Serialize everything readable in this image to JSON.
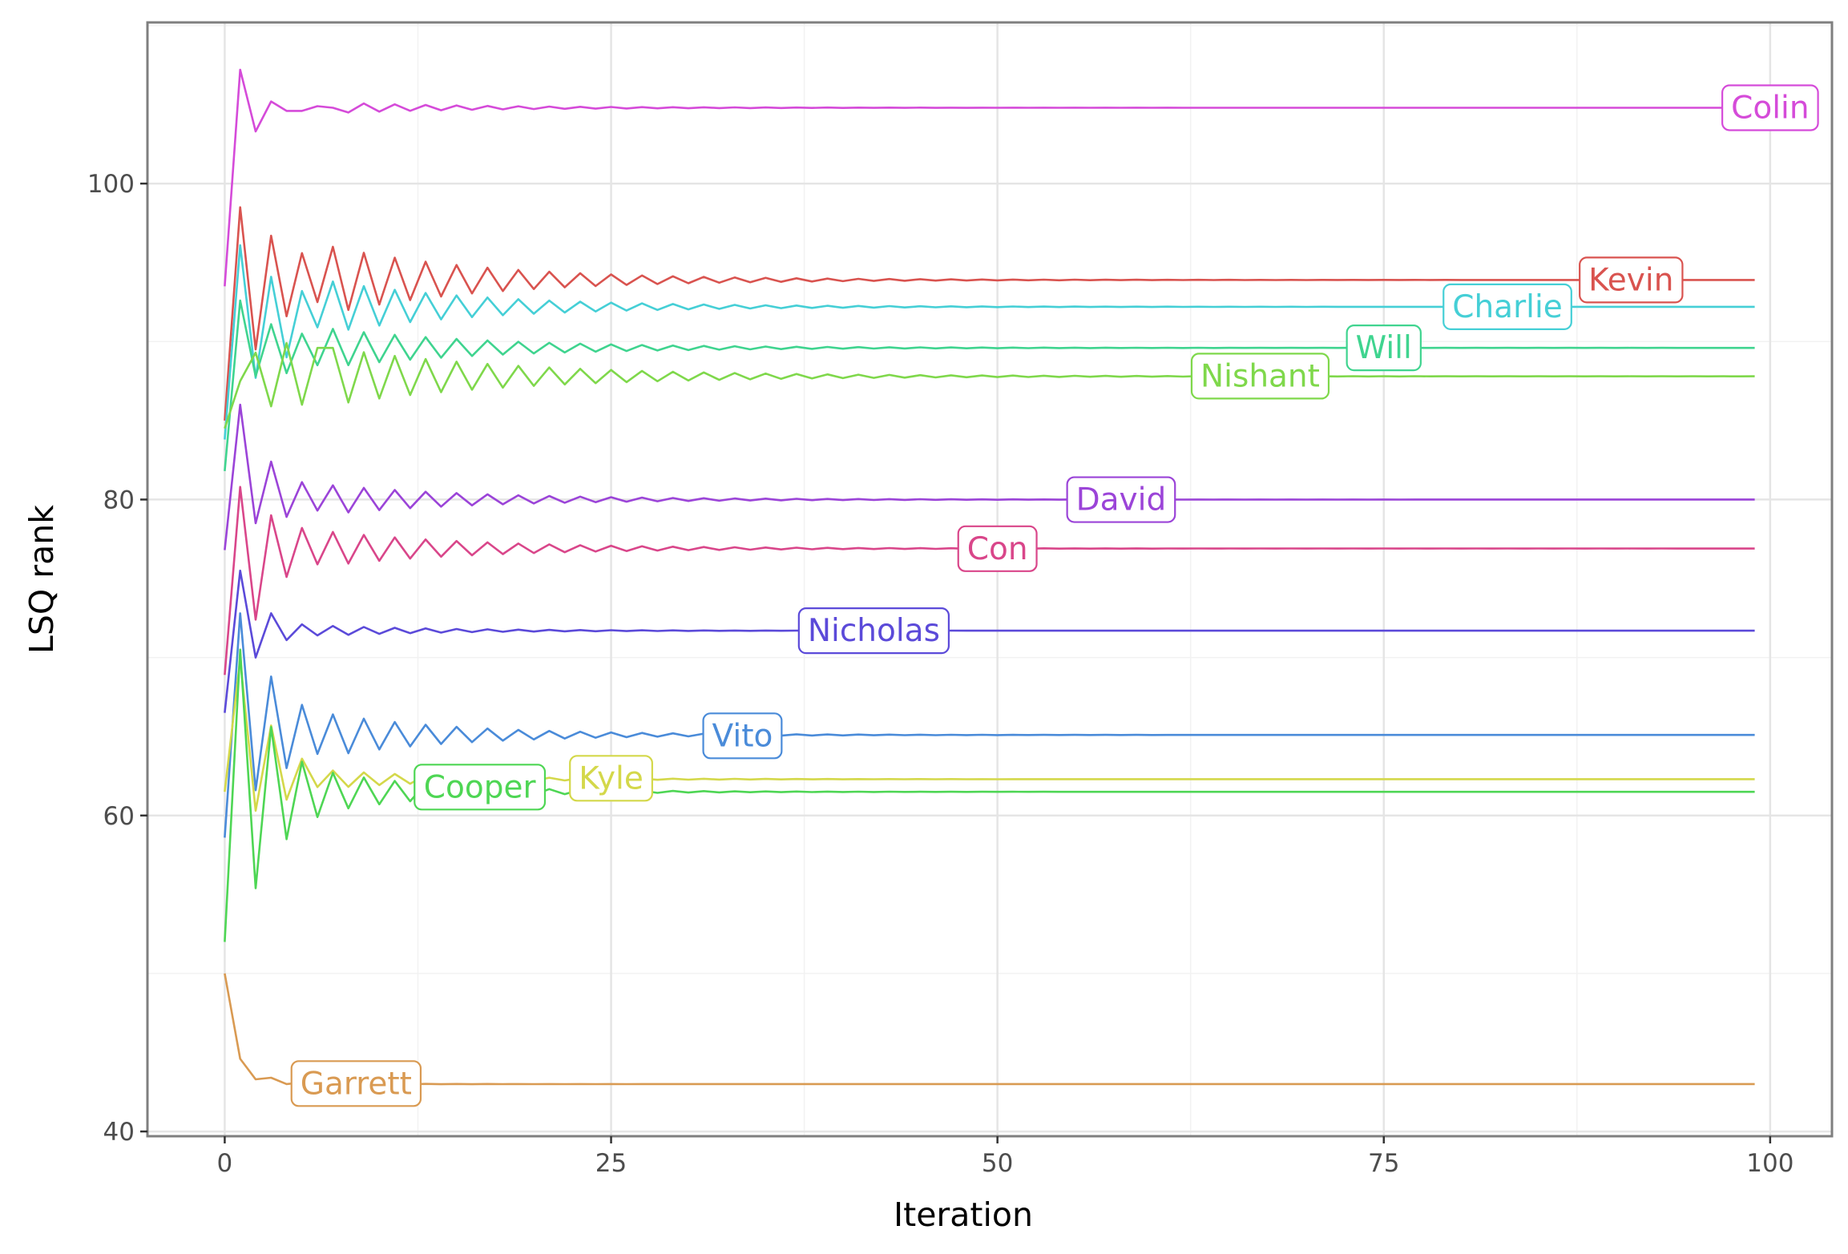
{
  "chart_data": {
    "type": "line",
    "title": "",
    "xlabel": "Iteration",
    "ylabel": "LSQ rank",
    "xlim": [
      -5,
      104
    ],
    "ylim": [
      39.7,
      110.2
    ],
    "x_ticks": [
      0,
      25,
      50,
      75,
      100
    ],
    "x_tick_labels": [
      "0",
      "25",
      "50",
      "75",
      "100"
    ],
    "y_ticks": [
      40,
      60,
      80,
      100
    ],
    "y_tick_labels": [
      "40",
      "60",
      "80",
      "100"
    ],
    "grid": true,
    "legend": "none (direct labels on lines)",
    "x_end": 99,
    "series": [
      {
        "name": "Colin",
        "color": "#d54bd9",
        "label_x": 100,
        "label_pos": "end",
        "start": [
          93.5,
          107.2,
          103.3,
          105.2,
          104.6,
          104.6,
          104.9,
          104.8
        ],
        "amp": 0.3,
        "decay": 0.9,
        "final": 104.8
      },
      {
        "name": "Kevin",
        "color": "#d9534f",
        "label_x": 91,
        "label_pos": "mid",
        "start": [
          85.0,
          98.5,
          89.5,
          96.7,
          91.6,
          95.6,
          92.5
        ],
        "amp": 2.1,
        "decay": 0.905,
        "final": 93.9
      },
      {
        "name": "Charlie",
        "color": "#45cfd6",
        "label_x": 83,
        "label_pos": "mid",
        "start": [
          83.8,
          96.1,
          87.7,
          94.1,
          89.0,
          93.2,
          90.9
        ],
        "amp": 1.6,
        "decay": 0.905,
        "final": 92.2
      },
      {
        "name": "Will",
        "color": "#3fd48f",
        "label_x": 75,
        "label_pos": "mid",
        "start": [
          81.8,
          92.6,
          87.8,
          91.1,
          88.0,
          90.5,
          88.5
        ],
        "amp": 1.2,
        "decay": 0.91,
        "final": 89.6
      },
      {
        "name": "Nishant",
        "color": "#7fd84b",
        "label_x": 67,
        "label_pos": "mid",
        "start": [
          84.5,
          87.5,
          89.3,
          85.9,
          89.9,
          86.0,
          89.6
        ],
        "amp": 1.8,
        "decay": 0.92,
        "final": 87.8
      },
      {
        "name": "David",
        "color": "#9b44d8",
        "label_x": 58,
        "label_pos": "mid",
        "start": [
          76.8,
          86.0,
          78.5,
          82.4,
          78.9,
          81.1,
          79.3
        ],
        "amp": 0.9,
        "decay": 0.905,
        "final": 80.0
      },
      {
        "name": "Con",
        "color": "#d9468a",
        "label_x": 50,
        "label_pos": "mid",
        "start": [
          68.9,
          80.8,
          72.4,
          79.0,
          75.1,
          78.2,
          75.9
        ],
        "amp": 1.05,
        "decay": 0.905,
        "final": 76.9
      },
      {
        "name": "Nicholas",
        "color": "#5b4ad9",
        "label_x": 42,
        "label_pos": "mid",
        "start": [
          66.5,
          75.5,
          70.0,
          72.8,
          71.1,
          72.1,
          71.4
        ],
        "amp": 0.3,
        "decay": 0.88,
        "final": 71.7
      },
      {
        "name": "Vito",
        "color": "#4a8bd9",
        "label_x": 33.5,
        "label_pos": "mid",
        "start": [
          58.6,
          72.8,
          61.6,
          68.8,
          63.0,
          67.0,
          63.9
        ],
        "amp": 1.3,
        "decay": 0.89,
        "final": 65.1
      },
      {
        "name": "Kyle",
        "color": "#d4d84a",
        "label_x": 25,
        "label_pos": "mid",
        "start": [
          61.5,
          69.9,
          60.3,
          65.7,
          61.0,
          63.6,
          61.8
        ],
        "amp": 0.55,
        "decay": 0.88,
        "final": 62.3
      },
      {
        "name": "Cooper",
        "color": "#4ed654",
        "label_x": 16.5,
        "label_pos": "mid",
        "start": [
          52.0,
          70.5,
          55.4,
          65.6,
          58.5,
          63.4,
          59.9
        ],
        "amp": 1.2,
        "decay": 0.87,
        "final": 61.5
      },
      {
        "name": "Garrett",
        "color": "#d99a52",
        "label_x": 8.5,
        "label_pos": "mid",
        "start": [
          50.0,
          44.6,
          43.3,
          43.4,
          43.0,
          43.1,
          43.0
        ],
        "amp": 0.05,
        "decay": 0.8,
        "final": 43.0
      }
    ]
  }
}
